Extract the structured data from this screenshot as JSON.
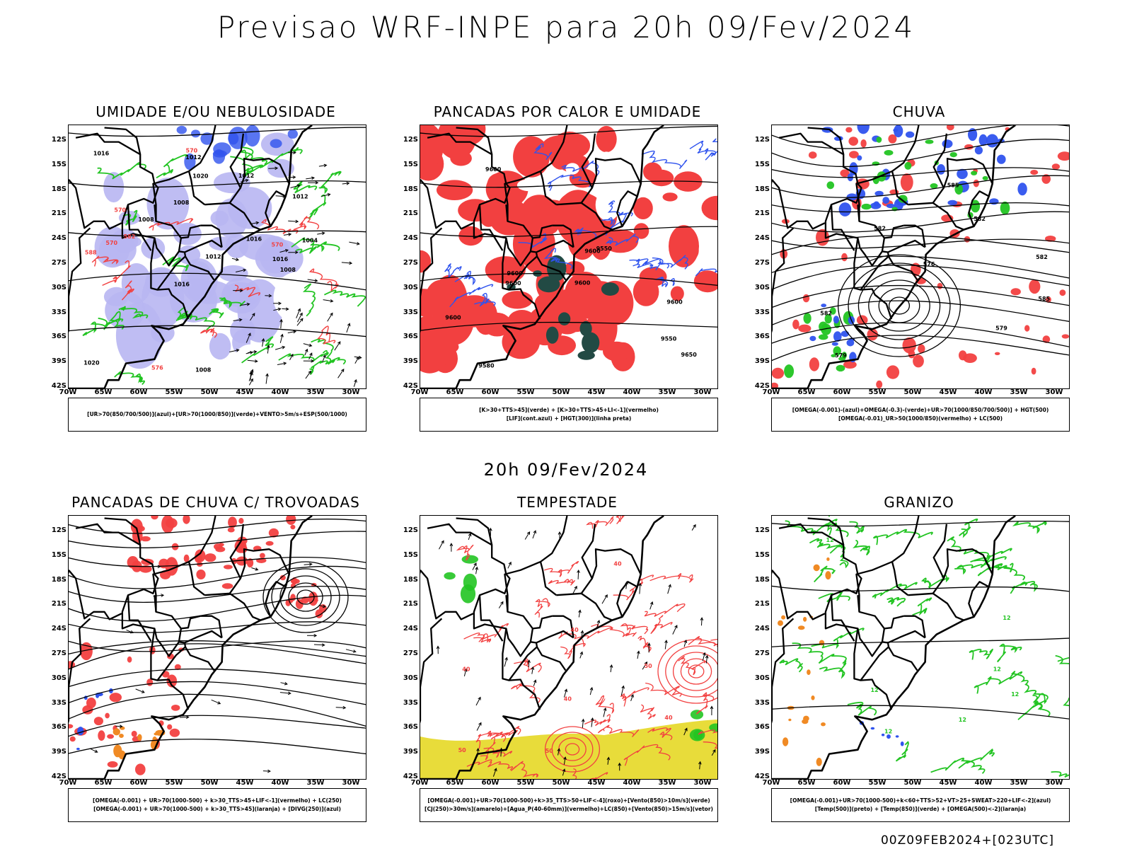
{
  "title": "Previsao WRF-INPE  para 20h 09/Fev/2024",
  "middle_title": "20h 09/Fev/2024",
  "footer": "00Z09FEB2024+[023UTC]",
  "lat_labels": [
    "12S",
    "15S",
    "18S",
    "21S",
    "24S",
    "27S",
    "30S",
    "33S",
    "36S",
    "39S",
    "42S"
  ],
  "lon_labels": [
    "70W",
    "65W",
    "60W",
    "55W",
    "50W",
    "45W",
    "40W",
    "35W",
    "30W"
  ],
  "colors": {
    "red": "#f24040",
    "green": "#22c422",
    "blue": "#2f53ee",
    "lavender": "#b8b6f2",
    "orange": "#f08a24",
    "yellow": "#e8dc3a",
    "darkteal": "#224a44",
    "purple": "#a020c0",
    "black": "#000000"
  },
  "panels": [
    {
      "id": "umidade",
      "title": "UMIDADE E/OU NEBULOSIDADE",
      "legend": [
        "[UR>70(850/700/500)](azul)+[UR>70(1000/850)](verde)+VENTO>5m/s+ESP(500/1000)"
      ],
      "contour_labels": [
        "1016",
        "1016",
        "1008",
        "1008",
        "1012",
        "1004",
        "1008",
        "1012",
        "1016",
        "1012",
        "1020",
        "1020",
        "1008",
        "1016",
        "1012",
        "570",
        "570",
        "576",
        "570",
        "582",
        "588",
        "570"
      ]
    },
    {
      "id": "pancadas_calor",
      "title": "PANCADAS POR CALOR E UMIDADE",
      "legend": [
        "[K>30+TTS>45](verde)  +  [K>30+TTS>45+LI<-1](vermelho)",
        "[LIF](cont.azul)  +  [HGT(300)](linha preta)"
      ],
      "contour_labels": [
        "9550",
        "9600",
        "9580",
        "9650",
        "9550",
        "9600",
        "9600",
        "9600",
        "9600",
        "9600",
        "9600"
      ]
    },
    {
      "id": "chuva",
      "title": "CHUVA",
      "legend": [
        "[OMEGA(-0.001)-(azul)+OMEGA(-0.3)-(verde)+UR>70(1000/850/700/500)]  +  HGT(500)",
        "[OMEGA(-0.01)_UR>50(1000/850)(vermelho)  +  LC(500)"
      ],
      "contour_labels": [
        "582",
        "585",
        "582",
        "582",
        "585",
        "579",
        "582",
        "576",
        "579"
      ]
    },
    {
      "id": "trovoadas",
      "title": "PANCADAS DE CHUVA C/ TROVOADAS",
      "legend": [
        "[OMEGA(-0.001)  +  UR>70(1000-500)  +  k>30_TTS>45+LIF<-1](vermelho)  +  LC(250)",
        "[OMEGA(-0.001)  +  UR>70(1000-500)  +  k>30_TTS>45](laranja)  +  [DIVG(250)](azul)"
      ],
      "contour_labels": []
    },
    {
      "id": "tempestade",
      "title": "TEMPESTADE",
      "legend": [
        "[OMEGA(-0.001)+UR>70(1000-500)+k>35_TTS>50+LIF<-4](roxo)+[Vento(850)>10m/s](verde)",
        "[CJ(250)>30m/s](amarelo)+[Agua_P(40-60mm)](vermelho)+LC(850)+[Vento(850)>15m/s](vetor)"
      ],
      "contour_labels": [
        "50",
        "40",
        "40",
        "50",
        "40",
        "40",
        "40",
        "50"
      ]
    },
    {
      "id": "granizo",
      "title": "GRANIZO",
      "legend": [
        "[OMEGA(-0.001)+UR>70(1000-500)+k<60+TTS>52+VT>25+SWEAT>220+LIF<-2](azul)",
        "[Temp(500)](preto)  +  [Temp(850)](verde)  +  [OMEGA(500)<-2](laranja)"
      ],
      "contour_labels": [
        "12",
        "12",
        "12",
        "12",
        "12",
        "12",
        "12"
      ]
    }
  ]
}
